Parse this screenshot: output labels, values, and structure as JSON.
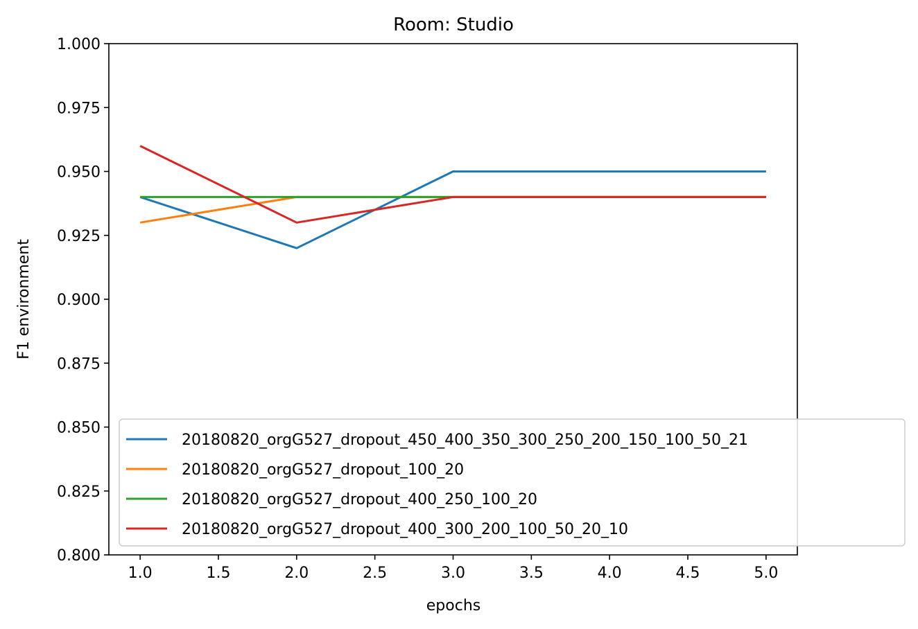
{
  "chart_data": {
    "type": "line",
    "title": "Room: Studio",
    "xlabel": "epochs",
    "ylabel": "F1 environment",
    "xlim": [
      0.8,
      5.2
    ],
    "ylim": [
      0.8,
      1.0
    ],
    "xticks": [
      "1.0",
      "1.5",
      "2.0",
      "2.5",
      "3.0",
      "3.5",
      "4.0",
      "4.5",
      "5.0"
    ],
    "yticks": [
      "0.800",
      "0.825",
      "0.850",
      "0.875",
      "0.900",
      "0.925",
      "0.950",
      "0.975",
      "1.000"
    ],
    "x": [
      1,
      2,
      3,
      4,
      5
    ],
    "grid": false,
    "legend_position": "lower-right",
    "series": [
      {
        "name": "20180820_orgG527_dropout_450_400_350_300_250_200_150_100_50_21",
        "color": "#1f77b4",
        "values": [
          0.94,
          0.92,
          0.95,
          0.95,
          0.95
        ]
      },
      {
        "name": "20180820_orgG527_dropout_100_20",
        "color": "#ff7f0e",
        "values": [
          0.93,
          0.94,
          0.94,
          0.94,
          0.94
        ]
      },
      {
        "name": "20180820_orgG527_dropout_400_250_100_20",
        "color": "#2ca02c",
        "values": [
          0.94,
          0.94,
          0.94,
          0.94,
          0.94
        ]
      },
      {
        "name": "20180820_orgG527_dropout_400_300_200_100_50_20_10",
        "color": "#d62728",
        "values": [
          0.96,
          0.93,
          0.94,
          0.94,
          0.94
        ]
      }
    ]
  }
}
